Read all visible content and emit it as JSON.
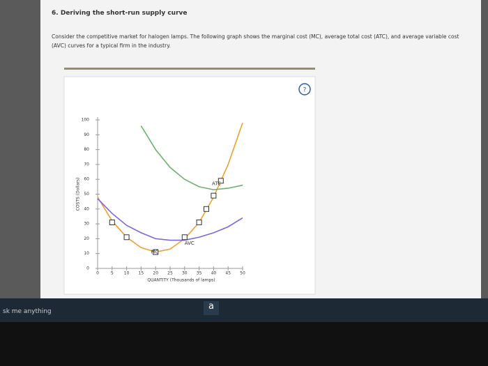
{
  "header": {
    "title": "6. Deriving the short-run supply curve",
    "instructions": "Consider the competitive market for halogen lamps. The following graph shows the marginal cost (MC), average total cost (ATC), and average variable cost (AVC) curves for a typical firm in the industry.",
    "help": "?"
  },
  "chart_data": {
    "type": "line",
    "x_label": "QUANTITY (Thousands of lamps)",
    "y_label": "COSTS (Dollars)",
    "xlim": [
      0,
      50
    ],
    "xticks": [
      0,
      5,
      10,
      15,
      20,
      25,
      30,
      35,
      40,
      45,
      50
    ],
    "ylim": [
      0,
      100
    ],
    "yticks": [
      0,
      10,
      20,
      30,
      40,
      50,
      60,
      70,
      80,
      90,
      100
    ],
    "series": [
      {
        "name": "MC",
        "color": "#f0a030",
        "x": [
          0,
          5,
          10,
          15,
          20,
          25,
          30,
          35,
          40,
          45,
          50
        ],
        "values": [
          48,
          32,
          21,
          14,
          11,
          13,
          20,
          31,
          48,
          70,
          98
        ]
      },
      {
        "name": "ATC",
        "color": "#6ab36a",
        "x": [
          15,
          20,
          25,
          30,
          35,
          40,
          45,
          50
        ],
        "values": [
          96,
          80,
          68,
          60,
          55,
          53,
          54,
          56
        ]
      },
      {
        "name": "AVC",
        "color": "#7b68d8",
        "x": [
          0,
          5,
          10,
          15,
          20,
          25,
          30,
          35,
          40,
          45,
          50
        ],
        "values": [
          47,
          37,
          29,
          24,
          20,
          19,
          19,
          21,
          24,
          28,
          34
        ]
      }
    ],
    "markers": {
      "x": [
        5,
        10,
        20,
        30,
        35,
        37.5,
        40,
        42.5
      ],
      "y": [
        31,
        21,
        11,
        21,
        31,
        40,
        49,
        59
      ],
      "color": "#f0a030"
    }
  },
  "taskbar": {
    "search": "sk me anything",
    "app": "a"
  }
}
